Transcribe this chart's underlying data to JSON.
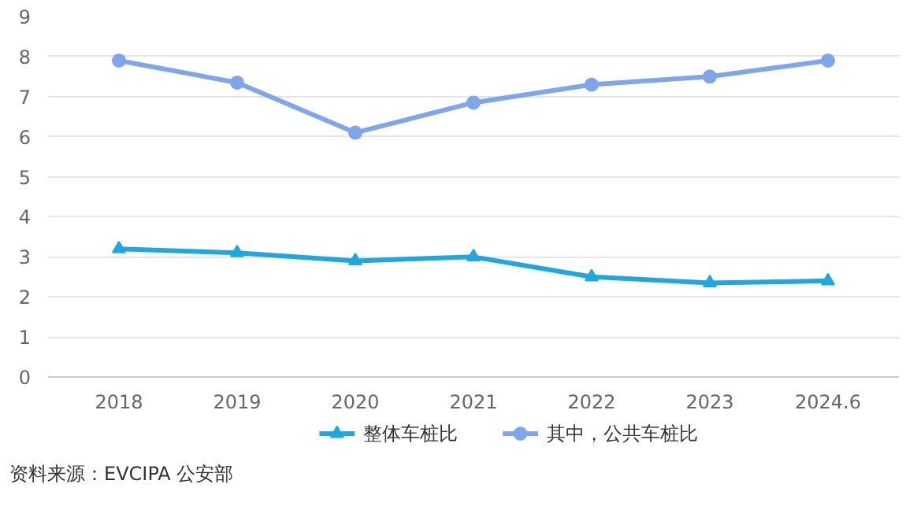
{
  "chart_data": {
    "type": "line",
    "categories": [
      "2018",
      "2019",
      "2020",
      "2021",
      "2022",
      "2023",
      "2024.6"
    ],
    "series": [
      {
        "name": "整体车桩比",
        "color": "#1ea7e0",
        "marker": "triangle",
        "values": [
          3.2,
          3.1,
          2.9,
          3.0,
          2.5,
          2.35,
          2.4
        ]
      },
      {
        "name": "其中，公共车桩比",
        "color": "#7ea6ec",
        "marker": "circle",
        "values": [
          7.9,
          7.35,
          6.1,
          6.85,
          7.3,
          7.5,
          7.9
        ]
      }
    ],
    "ylim": [
      0,
      9
    ],
    "yticks": [
      0,
      1,
      2,
      3,
      4,
      5,
      6,
      7,
      8,
      9
    ],
    "grid": "y",
    "legend": "bottom",
    "line_style": "solid",
    "annotations": [
      "资料来源：EVCIPA 公安部"
    ]
  }
}
